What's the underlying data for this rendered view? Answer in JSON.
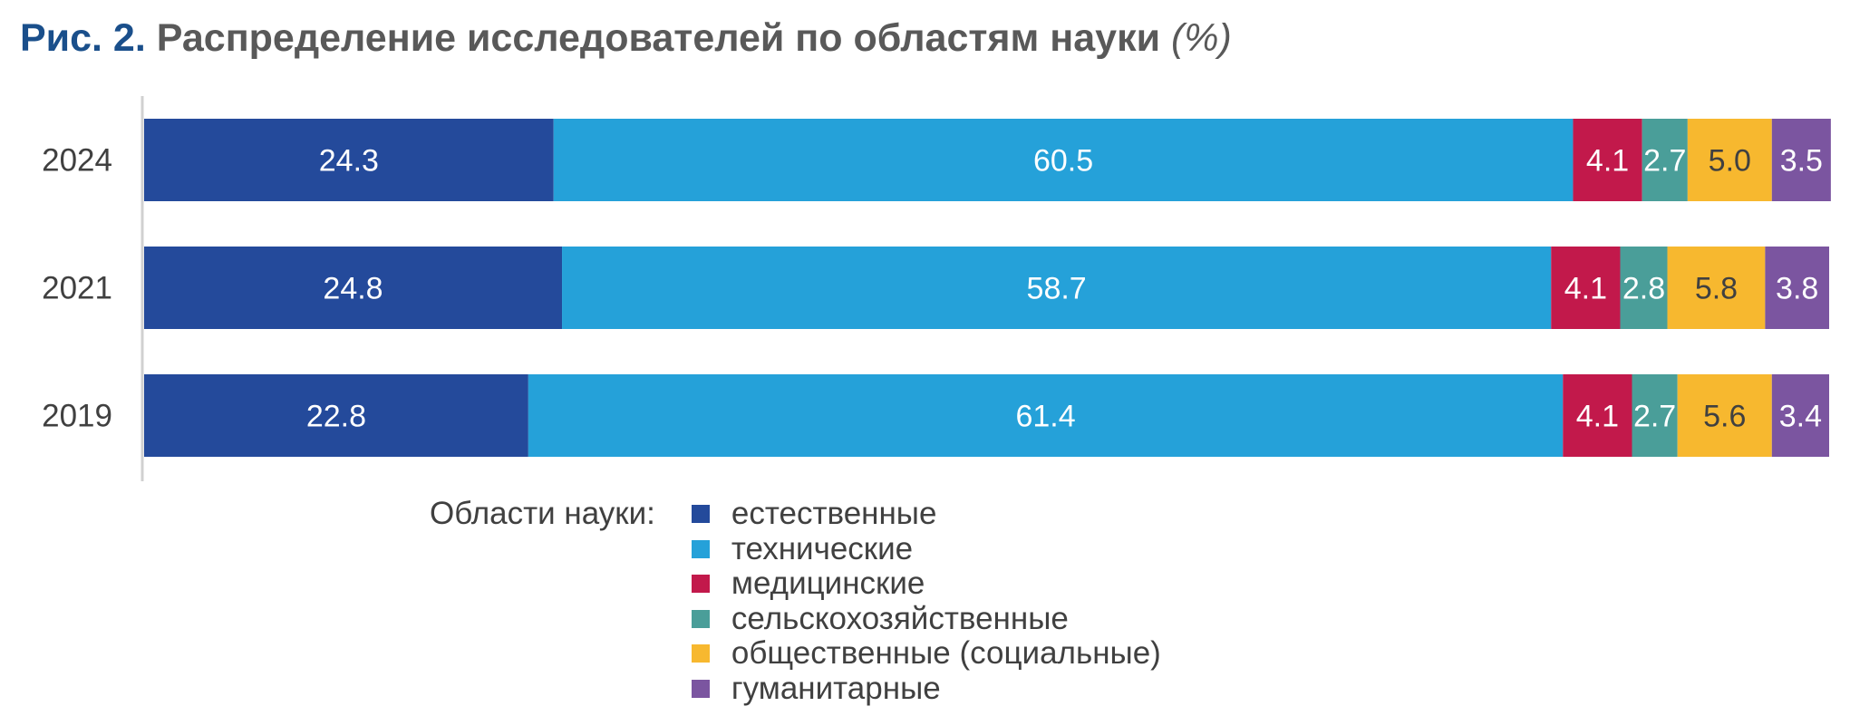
{
  "title": {
    "fig_num": "Рис. 2.",
    "text": "Распределение исследователей по областям науки",
    "unit": "(%)"
  },
  "chart_data": {
    "type": "bar",
    "orientation": "horizontal",
    "stacked": true,
    "categories": [
      "2024",
      "2021",
      "2019"
    ],
    "series": [
      {
        "name": "естественные",
        "color": "#244a9b",
        "label_color": "#ffffff",
        "values": [
          24.3,
          24.8,
          22.8
        ]
      },
      {
        "name": "технические",
        "color": "#25a1d9",
        "label_color": "#ffffff",
        "values": [
          60.5,
          58.7,
          61.4
        ]
      },
      {
        "name": "медицинские",
        "color": "#c2194b",
        "label_color": "#ffffff",
        "values": [
          4.1,
          4.1,
          4.1
        ]
      },
      {
        "name": "сельскохозяйственные",
        "color": "#4a9e99",
        "label_color": "#ffffff",
        "values": [
          2.7,
          2.8,
          2.7
        ]
      },
      {
        "name": "общественные (социальные)",
        "color": "#f7b82f",
        "label_color": "#404040",
        "values": [
          5.0,
          5.8,
          5.6
        ]
      },
      {
        "name": "гуманитарные",
        "color": "#7b55a0",
        "label_color": "#ffffff",
        "values": [
          3.5,
          3.8,
          3.4
        ]
      }
    ],
    "xlim": [
      0,
      100
    ],
    "data_labels": true,
    "grid": false,
    "legend": {
      "title": "Области науки:",
      "position": "bottom"
    }
  }
}
